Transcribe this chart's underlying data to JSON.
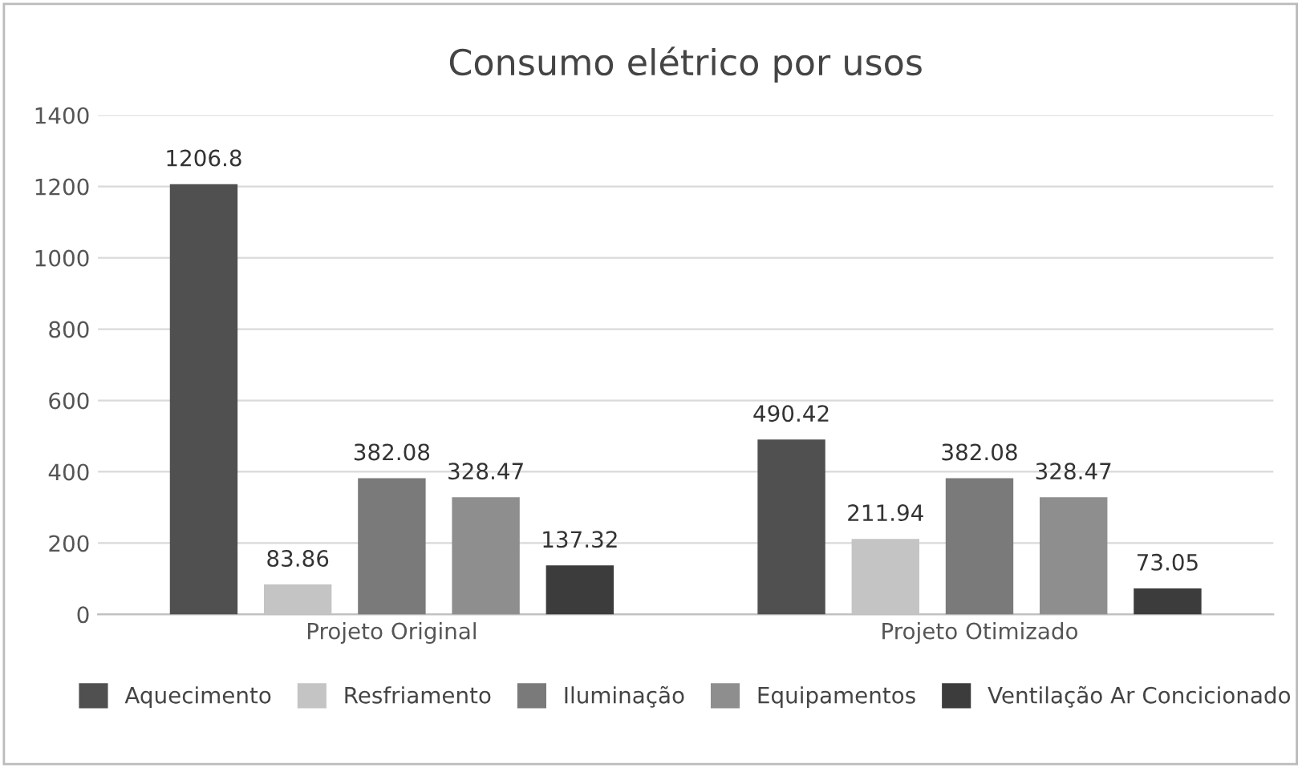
{
  "chart_data": {
    "type": "bar",
    "title": "Consumo elétrico por usos",
    "categories": [
      "Projeto Original",
      "Projeto Otimizado"
    ],
    "series": [
      {
        "name": "Aquecimento",
        "color": "#505050",
        "values": [
          1206.8,
          490.42
        ]
      },
      {
        "name": "Resfriamento",
        "color": "#c4c4c4",
        "values": [
          83.86,
          211.94
        ]
      },
      {
        "name": "Iluminação",
        "color": "#7a7a7a",
        "values": [
          382.08,
          382.08
        ]
      },
      {
        "name": "Equipamentos",
        "color": "#8e8e8e",
        "values": [
          328.47,
          328.47
        ]
      },
      {
        "name": "Ventilação Ar Concicionado",
        "color": "#3c3c3c",
        "values": [
          137.32,
          73.05
        ]
      }
    ],
    "ylim": [
      0,
      1400
    ],
    "yticks": [
      0,
      200,
      400,
      600,
      800,
      1000,
      1200,
      1400
    ],
    "grid": "y",
    "legend": "bottom",
    "data_labels": true
  }
}
